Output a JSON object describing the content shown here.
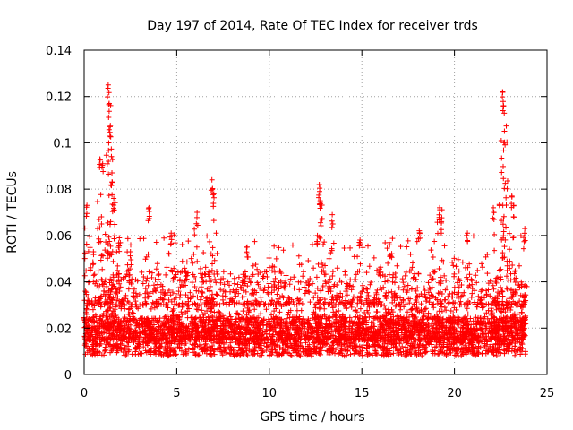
{
  "chart_data": {
    "type": "scatter",
    "title": "Day 197 of 2014, Rate Of TEC Index for receiver trds",
    "xlabel": "GPS time / hours",
    "ylabel": "ROTI / TECUs",
    "xlim": [
      0,
      25
    ],
    "ylim": [
      0,
      0.14
    ],
    "xticks": [
      0,
      5,
      10,
      15,
      20,
      25
    ],
    "xtick_labels": [
      "0",
      "5",
      "10",
      "15",
      "20",
      "25"
    ],
    "yticks": [
      0,
      0.02,
      0.04,
      0.06,
      0.08,
      0.1,
      0.12,
      0.14
    ],
    "ytick_labels": [
      "0",
      "0.02",
      "0.04",
      "0.06",
      "0.08",
      "0.1",
      "0.12",
      "0.14"
    ],
    "grid": true,
    "marker": "+",
    "color": "#ff0000",
    "series": [
      {
        "name": "ROTI",
        "x_range": [
          0,
          23.85
        ],
        "baseline_band": [
          0.008,
          0.025
        ],
        "peaks": [
          {
            "x": 0.15,
            "y": 0.073
          },
          {
            "x": 0.5,
            "y": 0.053
          },
          {
            "x": 0.85,
            "y": 0.093
          },
          {
            "x": 1.0,
            "y": 0.091
          },
          {
            "x": 1.3,
            "y": 0.125
          },
          {
            "x": 1.35,
            "y": 0.117
          },
          {
            "x": 1.4,
            "y": 0.107
          },
          {
            "x": 1.5,
            "y": 0.087
          },
          {
            "x": 1.6,
            "y": 0.076
          },
          {
            "x": 1.9,
            "y": 0.059
          },
          {
            "x": 2.5,
            "y": 0.053
          },
          {
            "x": 3.5,
            "y": 0.072
          },
          {
            "x": 4.7,
            "y": 0.061
          },
          {
            "x": 6.1,
            "y": 0.07
          },
          {
            "x": 6.9,
            "y": 0.084
          },
          {
            "x": 7.0,
            "y": 0.078
          },
          {
            "x": 8.8,
            "y": 0.055
          },
          {
            "x": 12.6,
            "y": 0.06
          },
          {
            "x": 12.7,
            "y": 0.082
          },
          {
            "x": 12.75,
            "y": 0.075
          },
          {
            "x": 13.4,
            "y": 0.069
          },
          {
            "x": 14.9,
            "y": 0.058
          },
          {
            "x": 16.5,
            "y": 0.056
          },
          {
            "x": 18.1,
            "y": 0.062
          },
          {
            "x": 19.2,
            "y": 0.072
          },
          {
            "x": 19.3,
            "y": 0.066
          },
          {
            "x": 20.7,
            "y": 0.061
          },
          {
            "x": 22.1,
            "y": 0.072
          },
          {
            "x": 22.6,
            "y": 0.122
          },
          {
            "x": 22.65,
            "y": 0.116
          },
          {
            "x": 22.7,
            "y": 0.105
          },
          {
            "x": 23.1,
            "y": 0.077
          },
          {
            "x": 23.2,
            "y": 0.073
          },
          {
            "x": 23.8,
            "y": 0.063
          }
        ]
      }
    ]
  }
}
